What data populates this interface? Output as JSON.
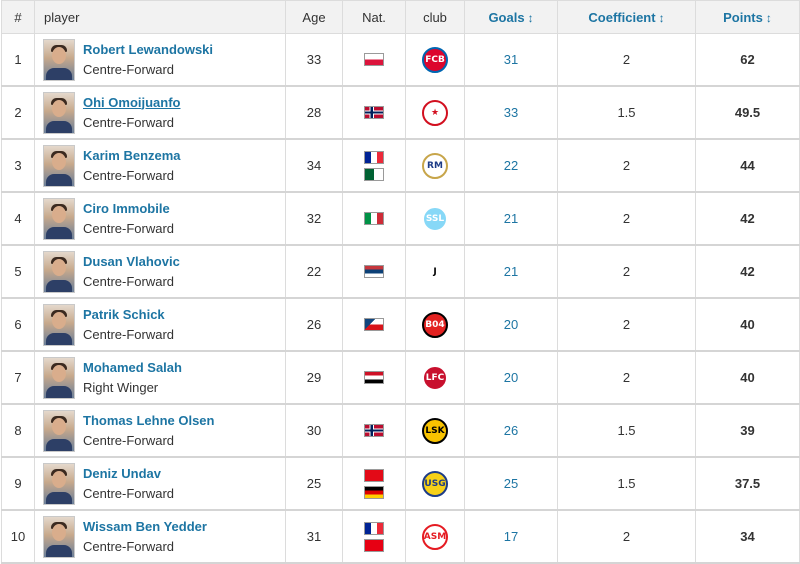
{
  "header": {
    "rank": "#",
    "player": "player",
    "age": "Age",
    "nat": "Nat.",
    "club": "club",
    "goals": "Goals",
    "coefficient": "Coefficient",
    "points": "Points",
    "sort_icon": "↕"
  },
  "rows": [
    {
      "rank": "1",
      "name": "Robert Lewandowski",
      "position": "Centre-Forward",
      "age": "33",
      "nat": [
        "Poland"
      ],
      "club_icon": "bayern-munich-crest-icon",
      "goals": "31",
      "coefficient": "2",
      "points": "62"
    },
    {
      "rank": "2",
      "name": "Ohi Omoijuanfo",
      "position": "Centre-Forward",
      "age": "28",
      "nat": [
        "Norway"
      ],
      "club_icon": "red-star-belgrade-crest-icon",
      "goals": "33",
      "coefficient": "1.5",
      "points": "49.5"
    },
    {
      "rank": "3",
      "name": "Karim Benzema",
      "position": "Centre-Forward",
      "age": "34",
      "nat": [
        "France",
        "Algeria"
      ],
      "club_icon": "real-madrid-crest-icon",
      "goals": "22",
      "coefficient": "2",
      "points": "44"
    },
    {
      "rank": "4",
      "name": "Ciro Immobile",
      "position": "Centre-Forward",
      "age": "32",
      "nat": [
        "Italy"
      ],
      "club_icon": "lazio-crest-icon",
      "goals": "21",
      "coefficient": "2",
      "points": "42"
    },
    {
      "rank": "5",
      "name": "Dusan Vlahovic",
      "position": "Centre-Forward",
      "age": "22",
      "nat": [
        "Serbia"
      ],
      "club_icon": "juventus-crest-icon",
      "goals": "21",
      "coefficient": "2",
      "points": "42"
    },
    {
      "rank": "6",
      "name": "Patrik Schick",
      "position": "Centre-Forward",
      "age": "26",
      "nat": [
        "Czech Republic"
      ],
      "club_icon": "bayer-leverkusen-crest-icon",
      "goals": "20",
      "coefficient": "2",
      "points": "40"
    },
    {
      "rank": "7",
      "name": "Mohamed Salah",
      "position": "Right Winger",
      "age": "29",
      "nat": [
        "Egypt"
      ],
      "club_icon": "liverpool-crest-icon",
      "goals": "20",
      "coefficient": "2",
      "points": "40"
    },
    {
      "rank": "8",
      "name": "Thomas Lehne Olsen",
      "position": "Centre-Forward",
      "age": "30",
      "nat": [
        "Norway"
      ],
      "club_icon": "lillestrom-crest-icon",
      "goals": "26",
      "coefficient": "1.5",
      "points": "39"
    },
    {
      "rank": "9",
      "name": "Deniz Undav",
      "position": "Centre-Forward",
      "age": "25",
      "nat": [
        "Turkey",
        "Germany"
      ],
      "club_icon": "union-saint-gilloise-crest-icon",
      "goals": "25",
      "coefficient": "1.5",
      "points": "37.5"
    },
    {
      "rank": "10",
      "name": "Wissam Ben Yedder",
      "position": "Centre-Forward",
      "age": "31",
      "nat": [
        "France",
        "Tunisia"
      ],
      "club_icon": "monaco-crest-icon",
      "goals": "17",
      "coefficient": "2",
      "points": "34"
    }
  ],
  "colors": {
    "link": "#1d75a3",
    "header_bg": "#f2f2f2",
    "border": "#dcdcdc"
  }
}
